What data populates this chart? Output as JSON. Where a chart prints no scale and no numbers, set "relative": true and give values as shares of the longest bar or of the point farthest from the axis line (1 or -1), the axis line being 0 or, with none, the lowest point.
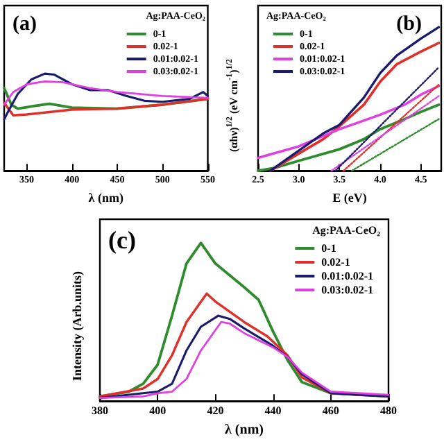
{
  "chart_data": [
    {
      "type": "line",
      "title": "(a)",
      "xlabel": "λ (nm)",
      "legend_title": "Ag:PAA-CeO₂",
      "legend": "top right",
      "relative": true,
      "tick_labels": "x",
      "xlim": [
        325,
        550
      ],
      "xticks": [
        350,
        400,
        450,
        500,
        550
      ],
      "series": [
        {
          "name": "0-1",
          "color": "#2e8b2e",
          "x": [
            325,
            333,
            340,
            360,
            375,
            400,
            450,
            500,
            550
          ],
          "values": [
            0.85,
            0.68,
            0.64,
            0.67,
            0.69,
            0.65,
            0.64,
            0.68,
            0.74
          ]
        },
        {
          "name": "0.02-1",
          "color": "#e0302a",
          "x": [
            325,
            335,
            350,
            400,
            450,
            500,
            550
          ],
          "values": [
            0.7,
            0.57,
            0.58,
            0.63,
            0.64,
            0.68,
            0.74
          ]
        },
        {
          "name": "0.01:0.02-1",
          "color": "#1a1a6e",
          "x": [
            325,
            330,
            340,
            355,
            370,
            380,
            400,
            420,
            440,
            460,
            480,
            500,
            530,
            545,
            550
          ],
          "values": [
            0.53,
            0.62,
            0.79,
            0.94,
            1,
            0.99,
            0.89,
            0.83,
            0.83,
            0.77,
            0.72,
            0.71,
            0.74,
            0.81,
            0.77
          ]
        },
        {
          "name": "0.03:0.02-1",
          "color": "#e040e0",
          "x": [
            325,
            335,
            350,
            370,
            390,
            420,
            450,
            500,
            550
          ],
          "values": [
            0.68,
            0.81,
            0.89,
            0.92,
            0.91,
            0.85,
            0.81,
            0.77,
            0.75
          ]
        }
      ]
    },
    {
      "type": "line",
      "title": "(b)",
      "xlabel": "E (eV)",
      "ylabel": "(αhν)$^{1/2}$ (eV cm$^{-1}$)$^{1/2}$",
      "legend_title": "Ag:PAA-CeO₂",
      "legend": "top left",
      "relative": true,
      "tick_labels": "x",
      "xlim": [
        2.5,
        4.75
      ],
      "xticks": [
        {
          "value": 2.5,
          "label": "2.5"
        },
        {
          "value": 3,
          "label": "3.0"
        },
        {
          "value": 3.5,
          "label": "3.5"
        },
        {
          "value": 4,
          "label": "4.0"
        },
        {
          "value": 4.5,
          "label": "4.5"
        }
      ],
      "series": [
        {
          "name": "0-1",
          "color": "#2e8b2e",
          "x": [
            2.5,
            2.7,
            3.0,
            3.5,
            3.8,
            4.0,
            4.3,
            4.5,
            4.72
          ],
          "values": [
            0,
            0.02,
            0.07,
            0.15,
            0.22,
            0.29,
            0.36,
            0.41,
            0.46
          ]
        },
        {
          "name": "0.02-1",
          "color": "#e0302a",
          "x": [
            2.65,
            3.0,
            3.3,
            3.5,
            3.8,
            4.0,
            4.2,
            4.5,
            4.72
          ],
          "values": [
            0,
            0.12,
            0.22,
            0.31,
            0.46,
            0.62,
            0.74,
            0.83,
            0.89
          ]
        },
        {
          "name": "0.01:0.02-1",
          "color": "#e040e0",
          "x": [
            2.5,
            3.0,
            3.5,
            4.0,
            4.3,
            4.5,
            4.72
          ],
          "values": [
            0.09,
            0.17,
            0.29,
            0.39,
            0.46,
            0.53,
            0.59
          ]
        },
        {
          "name": "0.03:0.02-1",
          "color": "#1a1a6e",
          "x": [
            2.65,
            3.0,
            3.3,
            3.5,
            3.8,
            4.0,
            4.2,
            4.5,
            4.72
          ],
          "values": [
            0,
            0.14,
            0.26,
            0.32,
            0.51,
            0.68,
            0.8,
            0.92,
            1
          ]
        },
        {
          "color": "#2e8b2e",
          "line_style": "dotted",
          "x": [
            3.65,
            4.72
          ],
          "values": [
            0,
            0.36
          ]
        },
        {
          "color": "#e0302a",
          "line_style": "dotted",
          "x": [
            3.55,
            4.72
          ],
          "values": [
            0,
            0.6
          ]
        },
        {
          "color": "#e040e0",
          "line_style": "dotted",
          "x": [
            3.4,
            4.72
          ],
          "values": [
            0,
            0.52
          ]
        },
        {
          "color": "#1a1a6e",
          "line_style": "dotted",
          "x": [
            3.45,
            4.72
          ],
          "values": [
            0,
            0.72
          ]
        }
      ]
    },
    {
      "type": "line",
      "title": "(c)",
      "xlabel": "λ (nm)",
      "ylabel": "Intensity (Arb.units)",
      "legend_title": "Ag:PAA-CeO₂",
      "legend": "top right",
      "relative": true,
      "tick_labels": "x",
      "xlim": [
        380,
        480
      ],
      "xticks": [
        380,
        400,
        420,
        440,
        460,
        480
      ],
      "series": [
        {
          "name": "0-1",
          "color": "#2e8b2e",
          "x": [
            380,
            390,
            395,
            400,
            405,
            410,
            415,
            420,
            430,
            435,
            440,
            445,
            450,
            460,
            480
          ],
          "values": [
            0.03,
            0.06,
            0.11,
            0.23,
            0.54,
            0.87,
            1,
            0.87,
            0.72,
            0.64,
            0.44,
            0.26,
            0.12,
            0.05,
            0.03
          ]
        },
        {
          "name": "0.02-1",
          "color": "#e0302a",
          "x": [
            380,
            395,
            400,
            405,
            410,
            417,
            420,
            430,
            438,
            445,
            450,
            460,
            480
          ],
          "values": [
            0.03,
            0.08,
            0.14,
            0.29,
            0.5,
            0.68,
            0.63,
            0.5,
            0.41,
            0.29,
            0.15,
            0.05,
            0.03
          ]
        },
        {
          "name": "0.01:0.02-1",
          "color": "#1a1a6e",
          "x": [
            380,
            395,
            400,
            405,
            410,
            415,
            421,
            425,
            430,
            440,
            445,
            450,
            460,
            480
          ],
          "values": [
            0.02,
            0.05,
            0.06,
            0.11,
            0.32,
            0.47,
            0.54,
            0.52,
            0.46,
            0.35,
            0.28,
            0.17,
            0.05,
            0.03
          ]
        },
        {
          "name": "0.03:0.02-1",
          "color": "#e040e0",
          "x": [
            380,
            395,
            400,
            405,
            410,
            415,
            422,
            425,
            430,
            440,
            445,
            450,
            460,
            480
          ],
          "values": [
            0.02,
            0.03,
            0.05,
            0.06,
            0.14,
            0.32,
            0.5,
            0.49,
            0.43,
            0.34,
            0.28,
            0.18,
            0.06,
            0.04
          ]
        }
      ]
    }
  ]
}
